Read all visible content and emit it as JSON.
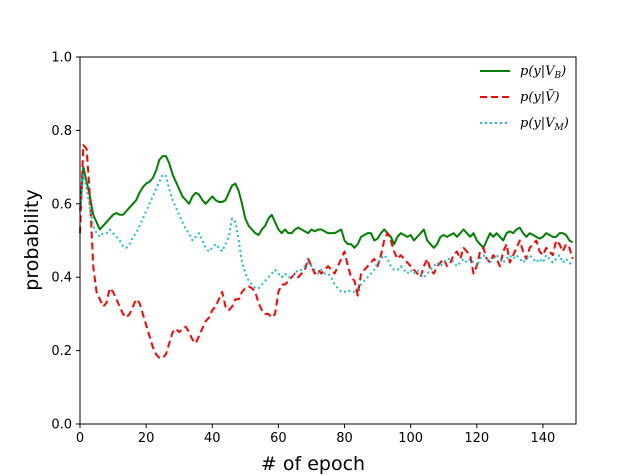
{
  "chart_data": {
    "type": "line",
    "xlabel": "# of epoch",
    "ylabel": "probability",
    "xlim": [
      0,
      150
    ],
    "ylim": [
      0.0,
      1.0
    ],
    "x_ticks": [
      0,
      20,
      40,
      60,
      80,
      100,
      120,
      140
    ],
    "y_ticks": [
      0.0,
      0.2,
      0.4,
      0.6,
      0.8,
      1.0
    ],
    "x_tick_labels": [
      "0",
      "20",
      "40",
      "60",
      "80",
      "100",
      "120",
      "140"
    ],
    "y_tick_labels": [
      "0.0",
      "0.2",
      "0.4",
      "0.6",
      "0.8",
      "1.0"
    ],
    "grid": false,
    "legend_position": "top-right",
    "series": [
      {
        "name": "p(y|V_B)",
        "label": "p(y|VB)",
        "color": "#008000",
        "dash": "solid",
        "x": [
          0,
          1,
          2,
          3,
          4,
          5,
          6,
          7,
          8,
          9,
          10,
          11,
          12,
          13,
          14,
          15,
          16,
          17,
          18,
          19,
          20,
          21,
          22,
          23,
          24,
          25,
          26,
          27,
          28,
          29,
          30,
          31,
          32,
          33,
          34,
          35,
          36,
          37,
          38,
          39,
          40,
          41,
          42,
          43,
          44,
          45,
          46,
          47,
          48,
          49,
          50,
          51,
          52,
          53,
          54,
          55,
          56,
          57,
          58,
          59,
          60,
          61,
          62,
          63,
          64,
          65,
          66,
          67,
          68,
          69,
          70,
          71,
          72,
          73,
          74,
          75,
          76,
          77,
          78,
          79,
          80,
          81,
          82,
          83,
          84,
          85,
          86,
          87,
          88,
          89,
          90,
          91,
          92,
          93,
          94,
          95,
          96,
          97,
          98,
          99,
          100,
          101,
          102,
          103,
          104,
          105,
          106,
          107,
          108,
          109,
          110,
          111,
          112,
          113,
          114,
          115,
          116,
          117,
          118,
          119,
          120,
          121,
          122,
          123,
          124,
          125,
          126,
          127,
          128,
          129,
          130,
          131,
          132,
          133,
          134,
          135,
          136,
          137,
          138,
          139,
          140,
          141,
          142,
          143,
          144,
          145,
          146,
          147,
          148,
          149
        ],
        "values": [
          0.58,
          0.7,
          0.66,
          0.62,
          0.57,
          0.55,
          0.53,
          0.54,
          0.55,
          0.56,
          0.57,
          0.575,
          0.57,
          0.57,
          0.58,
          0.59,
          0.6,
          0.61,
          0.63,
          0.645,
          0.655,
          0.66,
          0.67,
          0.69,
          0.72,
          0.73,
          0.73,
          0.71,
          0.68,
          0.66,
          0.64,
          0.62,
          0.61,
          0.6,
          0.62,
          0.63,
          0.625,
          0.61,
          0.6,
          0.61,
          0.62,
          0.61,
          0.605,
          0.605,
          0.61,
          0.63,
          0.65,
          0.655,
          0.635,
          0.6,
          0.56,
          0.54,
          0.53,
          0.52,
          0.515,
          0.53,
          0.54,
          0.56,
          0.57,
          0.55,
          0.53,
          0.52,
          0.53,
          0.52,
          0.52,
          0.53,
          0.535,
          0.53,
          0.525,
          0.52,
          0.53,
          0.525,
          0.53,
          0.53,
          0.525,
          0.52,
          0.52,
          0.52,
          0.525,
          0.53,
          0.5,
          0.49,
          0.49,
          0.48,
          0.49,
          0.51,
          0.515,
          0.52,
          0.52,
          0.5,
          0.505,
          0.52,
          0.53,
          0.52,
          0.51,
          0.49,
          0.51,
          0.52,
          0.515,
          0.51,
          0.515,
          0.5,
          0.51,
          0.52,
          0.53,
          0.5,
          0.49,
          0.48,
          0.49,
          0.51,
          0.515,
          0.51,
          0.515,
          0.52,
          0.51,
          0.52,
          0.53,
          0.52,
          0.51,
          0.52,
          0.5,
          0.49,
          0.48,
          0.5,
          0.52,
          0.51,
          0.52,
          0.51,
          0.5,
          0.52,
          0.525,
          0.52,
          0.53,
          0.535,
          0.52,
          0.51,
          0.52,
          0.515,
          0.51,
          0.505,
          0.51,
          0.52,
          0.515,
          0.51,
          0.51,
          0.52,
          0.52,
          0.515,
          0.5,
          0.495
        ]
      },
      {
        "name": "p(y|Ṽ)",
        "label": "p(y|Ṽ)",
        "color": "#ff0000",
        "dash": "7,4",
        "x": [
          0,
          1,
          2,
          3,
          4,
          5,
          6,
          7,
          8,
          9,
          10,
          11,
          12,
          13,
          14,
          15,
          16,
          17,
          18,
          19,
          20,
          21,
          22,
          23,
          24,
          25,
          26,
          27,
          28,
          29,
          30,
          31,
          32,
          33,
          34,
          35,
          36,
          37,
          38,
          39,
          40,
          41,
          42,
          43,
          44,
          45,
          46,
          47,
          48,
          49,
          50,
          51,
          52,
          53,
          54,
          55,
          56,
          57,
          58,
          59,
          60,
          61,
          62,
          63,
          64,
          65,
          66,
          67,
          68,
          69,
          70,
          71,
          72,
          73,
          74,
          75,
          76,
          77,
          78,
          79,
          80,
          81,
          82,
          83,
          84,
          85,
          86,
          87,
          88,
          89,
          90,
          91,
          92,
          93,
          94,
          95,
          96,
          97,
          98,
          99,
          100,
          101,
          102,
          103,
          104,
          105,
          106,
          107,
          108,
          109,
          110,
          111,
          112,
          113,
          114,
          115,
          116,
          117,
          118,
          119,
          120,
          121,
          122,
          123,
          124,
          125,
          126,
          127,
          128,
          129,
          130,
          131,
          132,
          133,
          134,
          135,
          136,
          137,
          138,
          139,
          140,
          141,
          142,
          143,
          144,
          145,
          146,
          147,
          148,
          149
        ],
        "values": [
          0.52,
          0.76,
          0.75,
          0.62,
          0.43,
          0.36,
          0.34,
          0.32,
          0.33,
          0.37,
          0.36,
          0.34,
          0.32,
          0.3,
          0.29,
          0.3,
          0.32,
          0.34,
          0.33,
          0.3,
          0.27,
          0.24,
          0.21,
          0.19,
          0.18,
          0.18,
          0.19,
          0.22,
          0.25,
          0.26,
          0.25,
          0.26,
          0.265,
          0.25,
          0.23,
          0.22,
          0.24,
          0.26,
          0.28,
          0.29,
          0.31,
          0.32,
          0.34,
          0.36,
          0.32,
          0.31,
          0.32,
          0.34,
          0.34,
          0.36,
          0.37,
          0.375,
          0.37,
          0.36,
          0.33,
          0.31,
          0.3,
          0.3,
          0.29,
          0.3,
          0.36,
          0.38,
          0.38,
          0.39,
          0.4,
          0.41,
          0.4,
          0.41,
          0.42,
          0.45,
          0.43,
          0.41,
          0.42,
          0.41,
          0.42,
          0.43,
          0.42,
          0.41,
          0.43,
          0.45,
          0.47,
          0.43,
          0.4,
          0.39,
          0.35,
          0.41,
          0.42,
          0.43,
          0.44,
          0.45,
          0.43,
          0.46,
          0.5,
          0.52,
          0.5,
          0.47,
          0.45,
          0.46,
          0.45,
          0.44,
          0.43,
          0.42,
          0.41,
          0.4,
          0.43,
          0.45,
          0.42,
          0.41,
          0.43,
          0.44,
          0.45,
          0.43,
          0.44,
          0.46,
          0.47,
          0.45,
          0.48,
          0.47,
          0.46,
          0.41,
          0.43,
          0.47,
          0.48,
          0.45,
          0.44,
          0.46,
          0.45,
          0.43,
          0.47,
          0.49,
          0.44,
          0.46,
          0.48,
          0.5,
          0.47,
          0.45,
          0.48,
          0.49,
          0.5,
          0.47,
          0.46,
          0.48,
          0.47,
          0.46,
          0.5,
          0.49,
          0.47,
          0.49,
          0.48,
          0.45
        ]
      },
      {
        "name": "p(y|V_M)",
        "label": "p(y|VM)",
        "color": "#17becf",
        "dash": "2,3",
        "x": [
          0,
          1,
          2,
          3,
          4,
          5,
          6,
          7,
          8,
          9,
          10,
          11,
          12,
          13,
          14,
          15,
          16,
          17,
          18,
          19,
          20,
          21,
          22,
          23,
          24,
          25,
          26,
          27,
          28,
          29,
          30,
          31,
          32,
          33,
          34,
          35,
          36,
          37,
          38,
          39,
          40,
          41,
          42,
          43,
          44,
          45,
          46,
          47,
          48,
          49,
          50,
          51,
          52,
          53,
          54,
          55,
          56,
          57,
          58,
          59,
          60,
          61,
          62,
          63,
          64,
          65,
          66,
          67,
          68,
          69,
          70,
          71,
          72,
          73,
          74,
          75,
          76,
          77,
          78,
          79,
          80,
          81,
          82,
          83,
          84,
          85,
          86,
          87,
          88,
          89,
          90,
          91,
          92,
          93,
          94,
          95,
          96,
          97,
          98,
          99,
          100,
          101,
          102,
          103,
          104,
          105,
          106,
          107,
          108,
          109,
          110,
          111,
          112,
          113,
          114,
          115,
          116,
          117,
          118,
          119,
          120,
          121,
          122,
          123,
          124,
          125,
          126,
          127,
          128,
          129,
          130,
          131,
          132,
          133,
          134,
          135,
          136,
          137,
          138,
          139,
          140,
          141,
          142,
          143,
          144,
          145,
          146,
          147,
          148,
          149
        ],
        "values": [
          0.58,
          0.68,
          0.64,
          0.59,
          0.54,
          0.52,
          0.51,
          0.52,
          0.52,
          0.53,
          0.52,
          0.51,
          0.5,
          0.485,
          0.48,
          0.49,
          0.51,
          0.52,
          0.54,
          0.56,
          0.58,
          0.6,
          0.62,
          0.64,
          0.66,
          0.68,
          0.675,
          0.64,
          0.61,
          0.59,
          0.57,
          0.55,
          0.53,
          0.52,
          0.5,
          0.51,
          0.52,
          0.5,
          0.48,
          0.47,
          0.48,
          0.49,
          0.48,
          0.47,
          0.49,
          0.51,
          0.56,
          0.55,
          0.5,
          0.44,
          0.41,
          0.39,
          0.38,
          0.37,
          0.37,
          0.38,
          0.39,
          0.4,
          0.41,
          0.42,
          0.41,
          0.4,
          0.41,
          0.4,
          0.4,
          0.41,
          0.42,
          0.42,
          0.43,
          0.44,
          0.43,
          0.42,
          0.41,
          0.42,
          0.41,
          0.41,
          0.4,
          0.38,
          0.37,
          0.36,
          0.36,
          0.365,
          0.36,
          0.36,
          0.37,
          0.38,
          0.39,
          0.4,
          0.41,
          0.42,
          0.44,
          0.45,
          0.46,
          0.45,
          0.43,
          0.42,
          0.42,
          0.43,
          0.42,
          0.41,
          0.42,
          0.41,
          0.42,
          0.41,
          0.4,
          0.41,
          0.42,
          0.43,
          0.44,
          0.43,
          0.44,
          0.45,
          0.45,
          0.44,
          0.43,
          0.44,
          0.45,
          0.44,
          0.45,
          0.44,
          0.43,
          0.45,
          0.46,
          0.45,
          0.44,
          0.45,
          0.46,
          0.45,
          0.44,
          0.45,
          0.46,
          0.45,
          0.46,
          0.45,
          0.44,
          0.45,
          0.46,
          0.45,
          0.44,
          0.45,
          0.44,
          0.46,
          0.45,
          0.44,
          0.45,
          0.46,
          0.44,
          0.45,
          0.44,
          0.43
        ]
      }
    ]
  }
}
